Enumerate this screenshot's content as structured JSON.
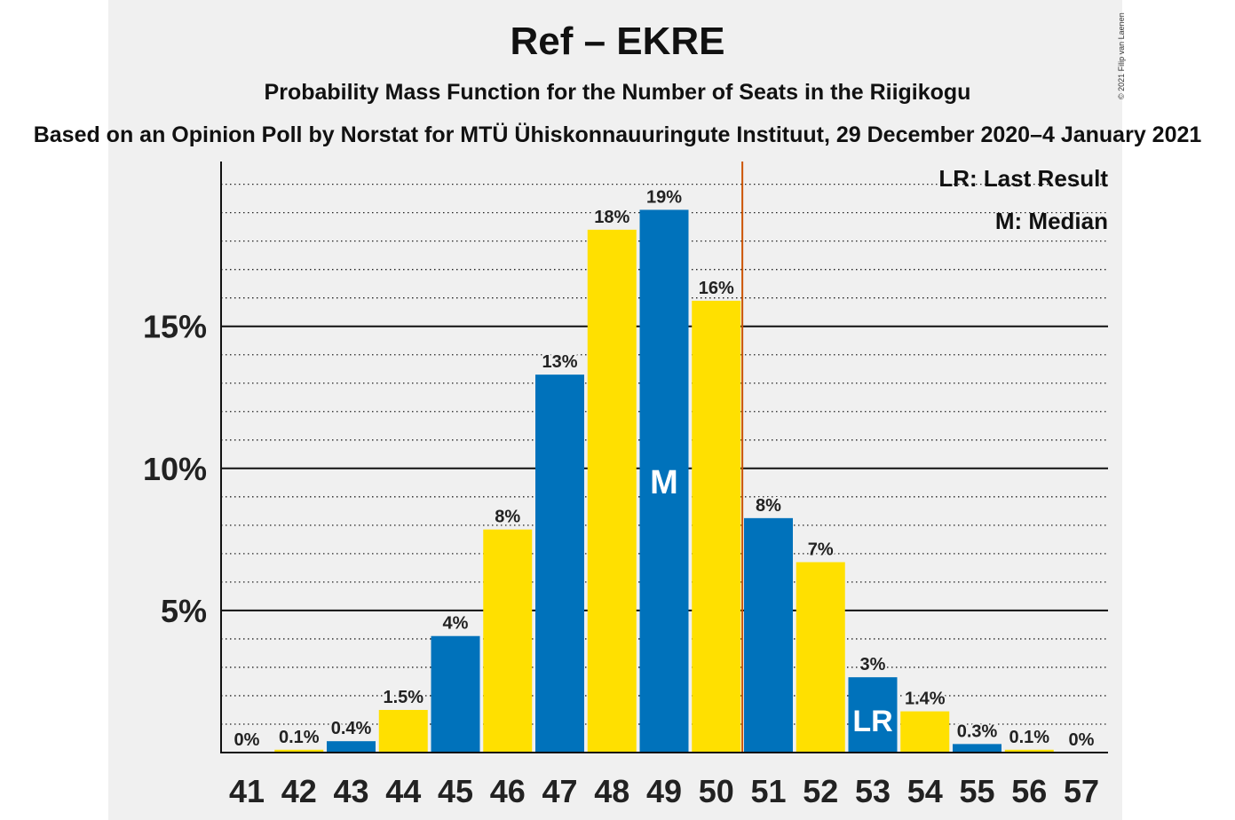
{
  "title": "Ref – EKRE",
  "subtitle": "Probability Mass Function for the Number of Seats in the Riigikogu",
  "source": "Based on an Opinion Poll by Norstat for MTÜ Ühiskonnauuringute Instituut, 29 December 2020–4 January 2021",
  "copyright": "© 2021 Filip van Laenen",
  "legend": {
    "last_result": "LR: Last Result",
    "median": "M: Median"
  },
  "colors": {
    "blue": "#0072bb",
    "yellow": "#ffe000",
    "last_result_line": "#cc5500",
    "panel": "#f0f0f0"
  },
  "chart_data": {
    "type": "bar",
    "categories": [
      "41",
      "42",
      "43",
      "44",
      "45",
      "46",
      "47",
      "48",
      "49",
      "50",
      "51",
      "52",
      "53",
      "54",
      "55",
      "56",
      "57"
    ],
    "values": [
      0,
      0.1,
      0.4,
      1.5,
      4.1,
      7.85,
      13.3,
      18.4,
      19.1,
      15.9,
      8.25,
      6.7,
      2.65,
      1.45,
      0.3,
      0.1,
      0
    ],
    "data_labels": [
      "0%",
      "0.1%",
      "0.4%",
      "1.5%",
      "4%",
      "8%",
      "13%",
      "18%",
      "19%",
      "16%",
      "8%",
      "7%",
      "3%",
      "1.4%",
      "0.3%",
      "0.1%",
      "0%"
    ],
    "bar_colors": [
      "blue",
      "yellow",
      "blue",
      "yellow",
      "blue",
      "yellow",
      "blue",
      "yellow",
      "blue",
      "yellow",
      "blue",
      "yellow",
      "blue",
      "yellow",
      "blue",
      "yellow",
      "blue"
    ],
    "y_ticks": [
      5,
      10,
      15
    ],
    "y_tick_labels": [
      "5%",
      "10%",
      "15%"
    ],
    "ylim": [
      0,
      20.8
    ],
    "minor_grid_step": 1,
    "median_category": "49",
    "median_label": "M",
    "last_result_category": "53",
    "last_result_label": "LR",
    "last_result_line_between": [
      "50",
      "51"
    ]
  }
}
